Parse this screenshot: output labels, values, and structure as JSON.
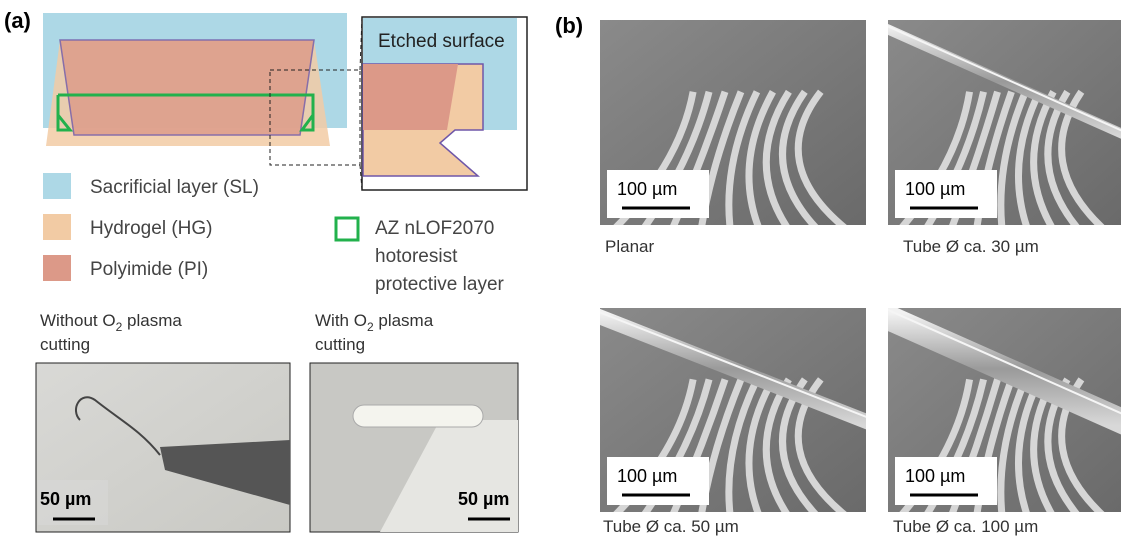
{
  "panel_a": {
    "label": "(a)",
    "inset_label": "Etched surface",
    "legend": [
      "Sacrificial layer (SL)",
      "Hydrogel (HG)",
      "Polyimide (PI)"
    ],
    "protective_layer": [
      "AZ nLOF2070",
      "hotoresist",
      "protective layer"
    ],
    "photos": [
      {
        "caption_before": "Without O",
        "caption_sub": "2",
        "caption_after": " plasma",
        "caption_line2": "cutting",
        "scale_bar": "50 µm"
      },
      {
        "caption_before": "With O",
        "caption_sub": "2",
        "caption_after": " plasma",
        "caption_line2": "cutting",
        "scale_bar": "50 µm"
      }
    ]
  },
  "panel_b": {
    "label": "(b)",
    "images": [
      {
        "scale_bar": "100 µm",
        "caption": "Planar"
      },
      {
        "scale_bar": "100 µm",
        "caption": "Tube Ø ca. 30 µm"
      },
      {
        "scale_bar": "100 µm",
        "caption": "Tube Ø ca. 50 µm"
      },
      {
        "scale_bar": "100 µm",
        "caption": "Tube Ø ca. 100 µm"
      }
    ]
  }
}
